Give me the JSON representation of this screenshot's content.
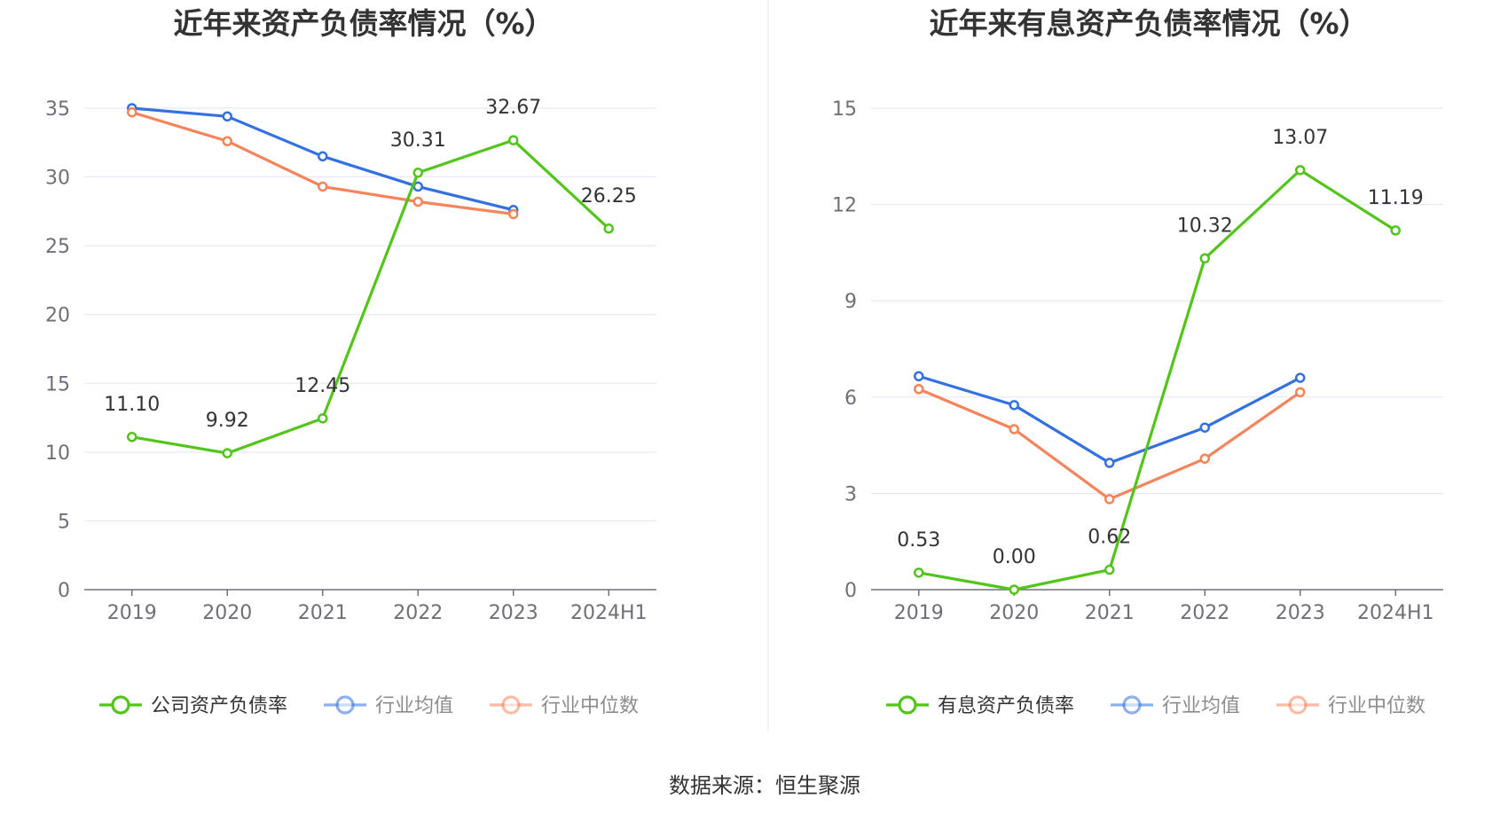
{
  "source_text": "数据来源：恒生聚源",
  "chart_data": [
    {
      "type": "line",
      "title": "近年来资产负债率情况（%）",
      "categories": [
        "2019",
        "2020",
        "2021",
        "2022",
        "2023",
        "2024H1"
      ],
      "ylim": [
        0,
        35
      ],
      "yticks": [
        0,
        5,
        10,
        15,
        20,
        25,
        30,
        35
      ],
      "grid": true,
      "legend_position": "bottom",
      "series": [
        {
          "name": "公司资产负债率",
          "color": "#52c41a",
          "values": [
            11.1,
            9.92,
            12.45,
            30.31,
            32.67,
            26.25
          ],
          "labels": [
            "11.10",
            "9.92",
            "12.45",
            "30.31",
            "32.67",
            "26.25"
          ]
        },
        {
          "name": "行业均值",
          "color": "#3370e0",
          "values": [
            35.0,
            34.4,
            31.5,
            29.3,
            27.6,
            null
          ]
        },
        {
          "name": "行业中位数",
          "color": "#f5845a",
          "values": [
            34.7,
            32.6,
            29.3,
            28.2,
            27.3,
            null
          ]
        }
      ]
    },
    {
      "type": "line",
      "title": "近年来有息资产负债率情况（%）",
      "categories": [
        "2019",
        "2020",
        "2021",
        "2022",
        "2023",
        "2024H1"
      ],
      "ylim": [
        0,
        15
      ],
      "yticks": [
        0,
        3,
        6,
        9,
        12,
        15
      ],
      "grid": true,
      "legend_position": "bottom",
      "series": [
        {
          "name": "有息资产负债率",
          "color": "#52c41a",
          "values": [
            0.53,
            0.0,
            0.62,
            10.32,
            13.07,
            11.19
          ],
          "labels": [
            "0.53",
            "0.00",
            "0.62",
            "10.32",
            "13.07",
            "11.19"
          ]
        },
        {
          "name": "行业均值",
          "color": "#3370e0",
          "values": [
            6.65,
            5.75,
            3.95,
            5.05,
            6.6,
            null
          ]
        },
        {
          "name": "行业中位数",
          "color": "#f5845a",
          "values": [
            6.25,
            5.0,
            2.82,
            4.08,
            6.15,
            null
          ]
        }
      ]
    }
  ]
}
